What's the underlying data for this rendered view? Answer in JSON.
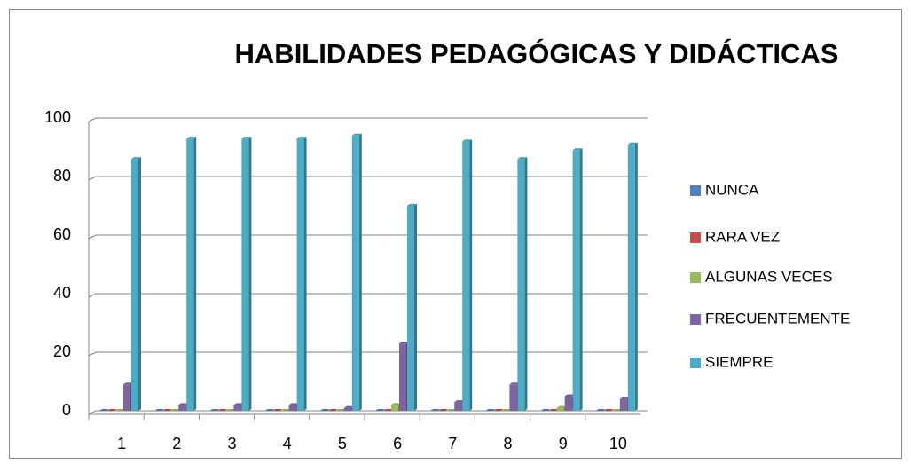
{
  "chart_data": {
    "type": "bar",
    "title": "HABILIDADES PEDAGÓGICAS Y DIDÁCTICAS",
    "categories": [
      "1",
      "2",
      "3",
      "4",
      "5",
      "6",
      "7",
      "8",
      "9",
      "10"
    ],
    "series": [
      {
        "name": "NUNCA",
        "color": "#4f81bd",
        "values": [
          0,
          0,
          0,
          0,
          0,
          0,
          0,
          0,
          0,
          0
        ]
      },
      {
        "name": "RARA VEZ",
        "color": "#c0504d",
        "values": [
          0,
          0,
          0,
          0,
          0,
          0,
          0,
          0,
          0,
          0
        ]
      },
      {
        "name": "ALGUNAS VECES",
        "color": "#9bbb59",
        "values": [
          0,
          0,
          0,
          0,
          0,
          2,
          0,
          0,
          1,
          0
        ]
      },
      {
        "name": "FRECUENTEMENTE",
        "color": "#8064a2",
        "values": [
          9,
          2,
          2,
          2,
          1,
          23,
          3,
          9,
          5,
          4
        ]
      },
      {
        "name": "SIEMPRE",
        "color": "#4bacc6",
        "values": [
          86,
          93,
          93,
          93,
          94,
          70,
          92,
          86,
          89,
          91
        ]
      }
    ],
    "ylim": [
      0,
      100
    ],
    "yticks": [
      0,
      20,
      40,
      60,
      80,
      100
    ],
    "grid": true,
    "legend": "right"
  }
}
